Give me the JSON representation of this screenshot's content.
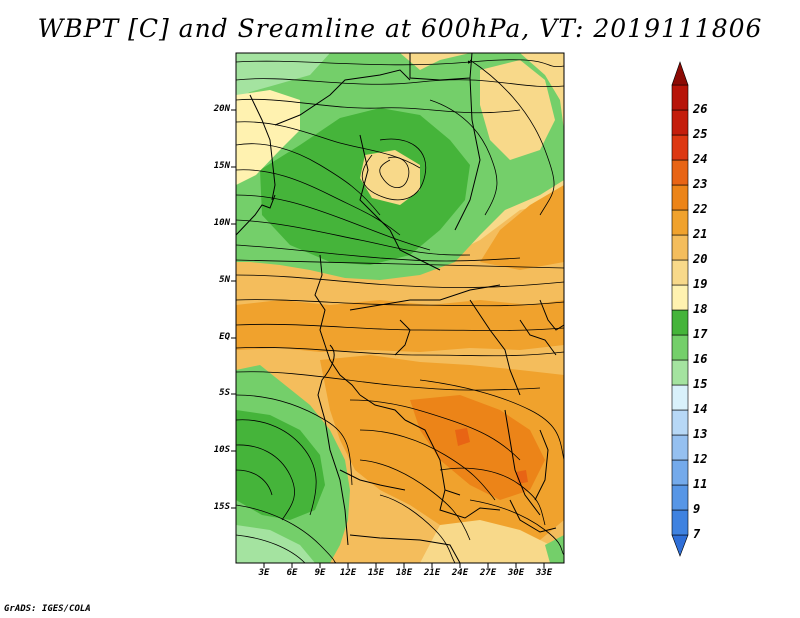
{
  "title": "WBPT [C] and Sreamline at 600hPa, VT: 2019111806",
  "footer": "GrADS: IGES/COLA",
  "lat_labels": [
    "20N",
    "15N",
    "10N",
    "5N",
    "EQ",
    "5S",
    "10S",
    "15S"
  ],
  "lon_labels": [
    "3E",
    "6E",
    "9E",
    "12E",
    "15E",
    "18E",
    "21E",
    "24E",
    "27E",
    "30E",
    "33E"
  ],
  "colorbar": {
    "levels": [
      "7",
      "9",
      "11",
      "12",
      "13",
      "14",
      "15",
      "16",
      "17",
      "18",
      "19",
      "20",
      "21",
      "22",
      "23",
      "24",
      "25",
      "26"
    ],
    "colors": [
      "#2f6fd8",
      "#3f82e0",
      "#5796e6",
      "#74aaeb",
      "#95c0f0",
      "#b7d8f6",
      "#d9f1fb",
      "#a4e3a0",
      "#74cf6a",
      "#45b43a",
      "#fff2b0",
      "#f8d98a",
      "#f4bd5c",
      "#f0a22d",
      "#ec8418",
      "#e86414",
      "#dd3812",
      "#b71409",
      "#8c0b05"
    ]
  },
  "field_colors": {
    "green_dark": "#45b43a",
    "green_mid": "#74cf6a",
    "green_light": "#a4e3a0",
    "yellow_light": "#fff2b0",
    "yellow": "#f8d98a",
    "orange_light": "#f4bd5c",
    "orange": "#f0a22d",
    "orange_dark": "#ec8418",
    "red": "#e86414"
  }
}
